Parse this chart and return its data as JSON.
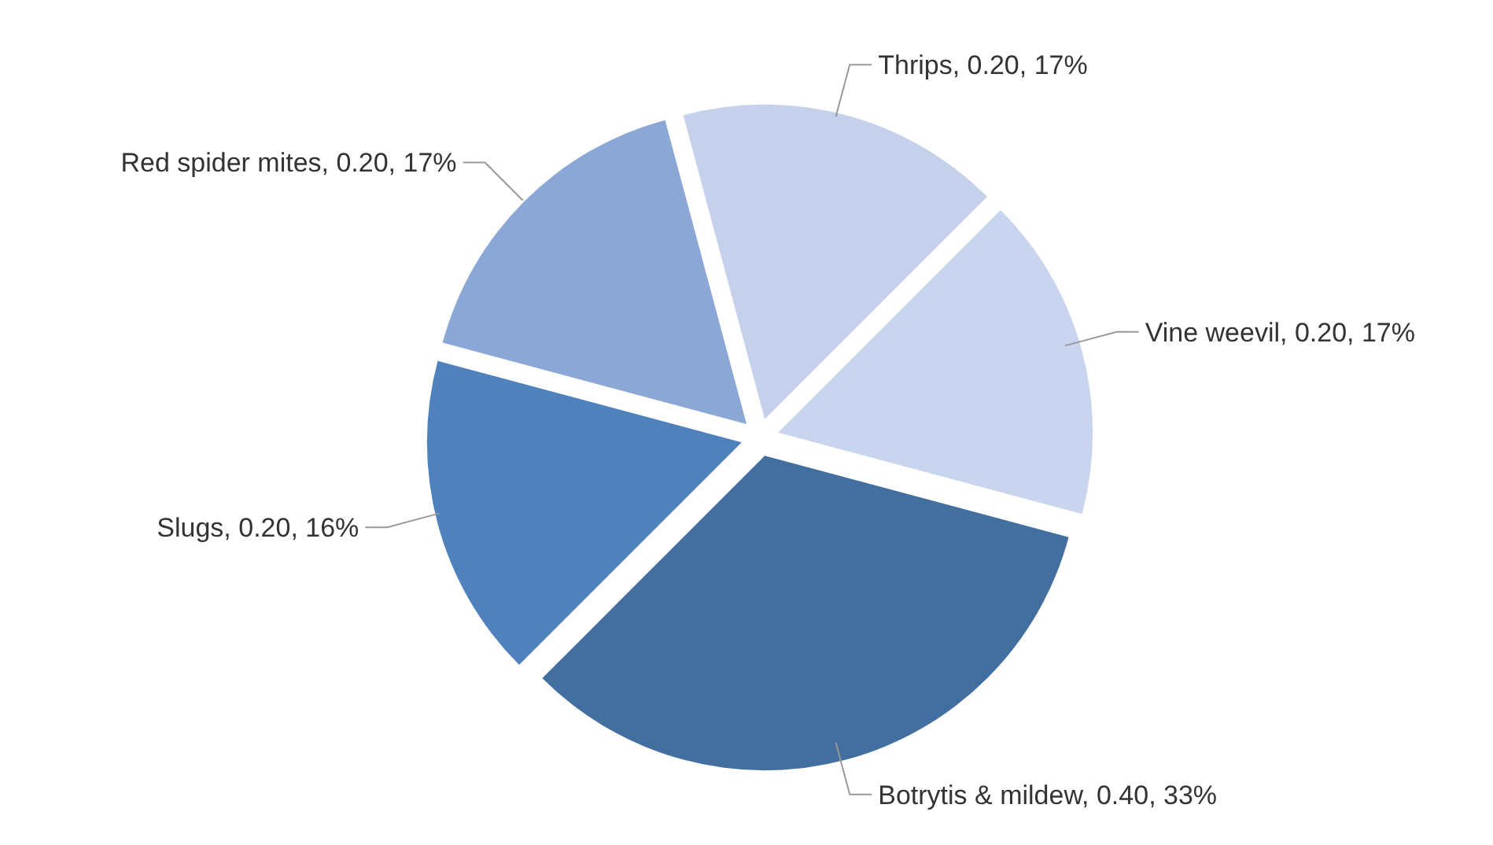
{
  "chart_data": {
    "type": "pie",
    "categories": [
      "Thrips",
      "Vine weevil",
      "Botrytis & mildew",
      "Slugs",
      "Red spider mites"
    ],
    "values": [
      0.2,
      0.2,
      0.4,
      0.2,
      0.2
    ],
    "value_labels": [
      "0.20, 17%",
      "0.20, 17%",
      "0.40, 33%",
      "0.20, 16%",
      "0.20, 17%"
    ],
    "colors": [
      "#c5d1ea",
      "#c9d5ee",
      "#436fa0",
      "#4f81bd",
      "#8aa7d6"
    ]
  }
}
